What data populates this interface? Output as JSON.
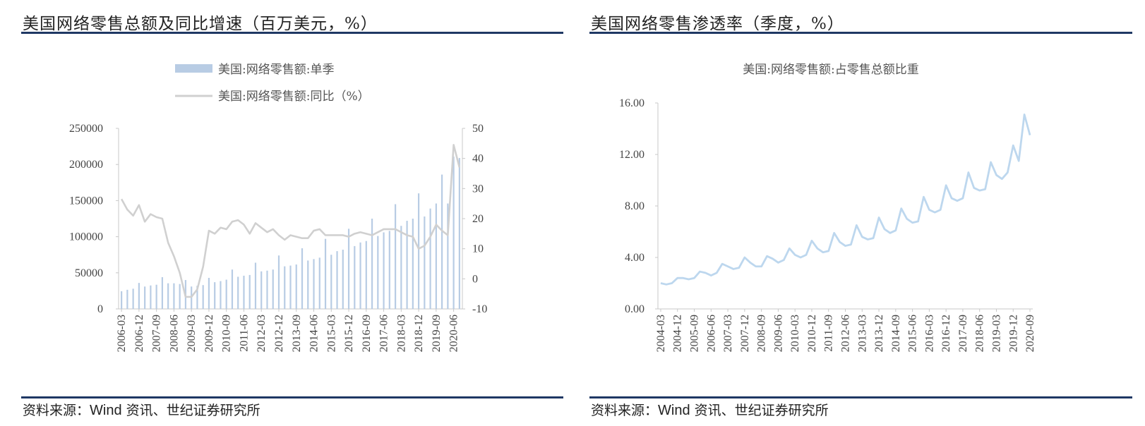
{
  "left": {
    "title": "美国网络零售总额及同比增速（百万美元，%）",
    "source": {
      "prefix": "资料来源：",
      "wind": "Wind",
      "suffix": " 资讯、世纪证券研究所"
    }
  },
  "right": {
    "title": "美国网络零售渗透率（季度，%）",
    "source": {
      "prefix": "资料来源：",
      "wind": "Wind",
      "suffix": " 资讯、世纪证券研究所"
    }
  },
  "colors": {
    "bar": "#b8cce4",
    "line_gray": "#d0d0d0",
    "line_blue": "#bdd7ee",
    "rule": "#1f3864",
    "axis": "#c8c8c8"
  },
  "chart_data": [
    {
      "type": "bar",
      "legend": [
        "美国:网络零售额:单季",
        "美国:网络零售额:同比（%）"
      ],
      "x_tick_labels": [
        "2006-03",
        "2006-12",
        "2007-09",
        "2008-06",
        "2009-03",
        "2009-12",
        "2010-09",
        "2011-06",
        "2012-03",
        "2012-12",
        "2013-09",
        "2014-06",
        "2015-03",
        "2015-12",
        "2016-09",
        "2017-06",
        "2018-03",
        "2018-12",
        "2019-09",
        "2020-06"
      ],
      "y_left_ticks": [
        "0",
        "50000",
        "100000",
        "150000",
        "200000",
        "250000"
      ],
      "y_left_lim": [
        0,
        250000
      ],
      "y_right_ticks": [
        "-10",
        "0",
        "10",
        "20",
        "30",
        "40",
        "50"
      ],
      "y_right_lim": [
        -10,
        50
      ],
      "series": [
        {
          "name": "美国:网络零售额:单季",
          "axis": "left",
          "kind": "bar",
          "values": [
            24500,
            26500,
            28000,
            36000,
            31000,
            32500,
            33500,
            44000,
            35500,
            35500,
            34500,
            40000,
            31000,
            32000,
            33000,
            43000,
            37000,
            38500,
            40500,
            54500,
            44500,
            46000,
            47000,
            64000,
            52000,
            53000,
            54500,
            74000,
            59000,
            60000,
            61500,
            84000,
            67000,
            69000,
            71000,
            97000,
            75000,
            80000,
            82000,
            111000,
            87000,
            92000,
            94000,
            125000,
            101000,
            106000,
            108000,
            145000,
            115000,
            122000,
            125000,
            160000,
            128000,
            139000,
            146000,
            186000,
            146000,
            211000,
            209000
          ]
        },
        {
          "name": "美国:网络零售额:同比（%）",
          "axis": "right",
          "kind": "line",
          "values": [
            26.5,
            23,
            21,
            24.5,
            19,
            21.5,
            20.5,
            20,
            12,
            7.5,
            2,
            -6,
            -6,
            -3.5,
            4,
            16,
            15,
            17,
            16.5,
            19,
            19.5,
            18,
            15,
            18.5,
            17,
            15.5,
            16.5,
            14.5,
            13,
            14.5,
            14,
            13.5,
            13.5,
            16,
            16.5,
            14.5,
            14.5,
            14.5,
            14.5,
            14,
            15,
            15.5,
            15,
            14.5,
            15.5,
            16.5,
            16.5,
            16.5,
            15.5,
            14.5,
            14,
            10,
            11,
            14,
            18,
            16,
            14.5,
            44.5,
            37
          ]
        }
      ]
    },
    {
      "type": "line",
      "legend": [
        "美国:网络零售额:占零售总额比重"
      ],
      "x_tick_labels": [
        "2004-03",
        "2004-12",
        "2005-09",
        "2006-06",
        "2007-03",
        "2007-12",
        "2008-09",
        "2009-06",
        "2010-03",
        "2010-12",
        "2011-09",
        "2012-06",
        "2013-03",
        "2013-12",
        "2014-09",
        "2015-06",
        "2016-03",
        "2016-12",
        "2017-09",
        "2018-06",
        "2019-03",
        "2019-12",
        "2020-09"
      ],
      "y_ticks": [
        "0.00",
        "4.00",
        "8.00",
        "12.00",
        "16.00"
      ],
      "ylim": [
        0,
        16
      ],
      "series": [
        {
          "name": "美国:网络零售额:占零售总额比重",
          "values": [
            2.0,
            1.9,
            2.0,
            2.4,
            2.4,
            2.3,
            2.4,
            2.9,
            2.8,
            2.6,
            2.8,
            3.5,
            3.3,
            3.1,
            3.2,
            4.0,
            3.6,
            3.3,
            3.3,
            4.1,
            3.9,
            3.6,
            3.8,
            4.7,
            4.2,
            4.0,
            4.2,
            5.3,
            4.7,
            4.4,
            4.5,
            5.9,
            5.2,
            4.9,
            5.0,
            6.5,
            5.6,
            5.4,
            5.5,
            7.1,
            6.2,
            5.9,
            6.1,
            7.8,
            7.0,
            6.7,
            6.8,
            8.7,
            7.7,
            7.5,
            7.7,
            9.6,
            8.6,
            8.4,
            8.6,
            10.6,
            9.4,
            9.2,
            9.3,
            11.4,
            10.4,
            10.1,
            10.6,
            12.7,
            11.5,
            15.1,
            13.5
          ]
        }
      ]
    }
  ]
}
